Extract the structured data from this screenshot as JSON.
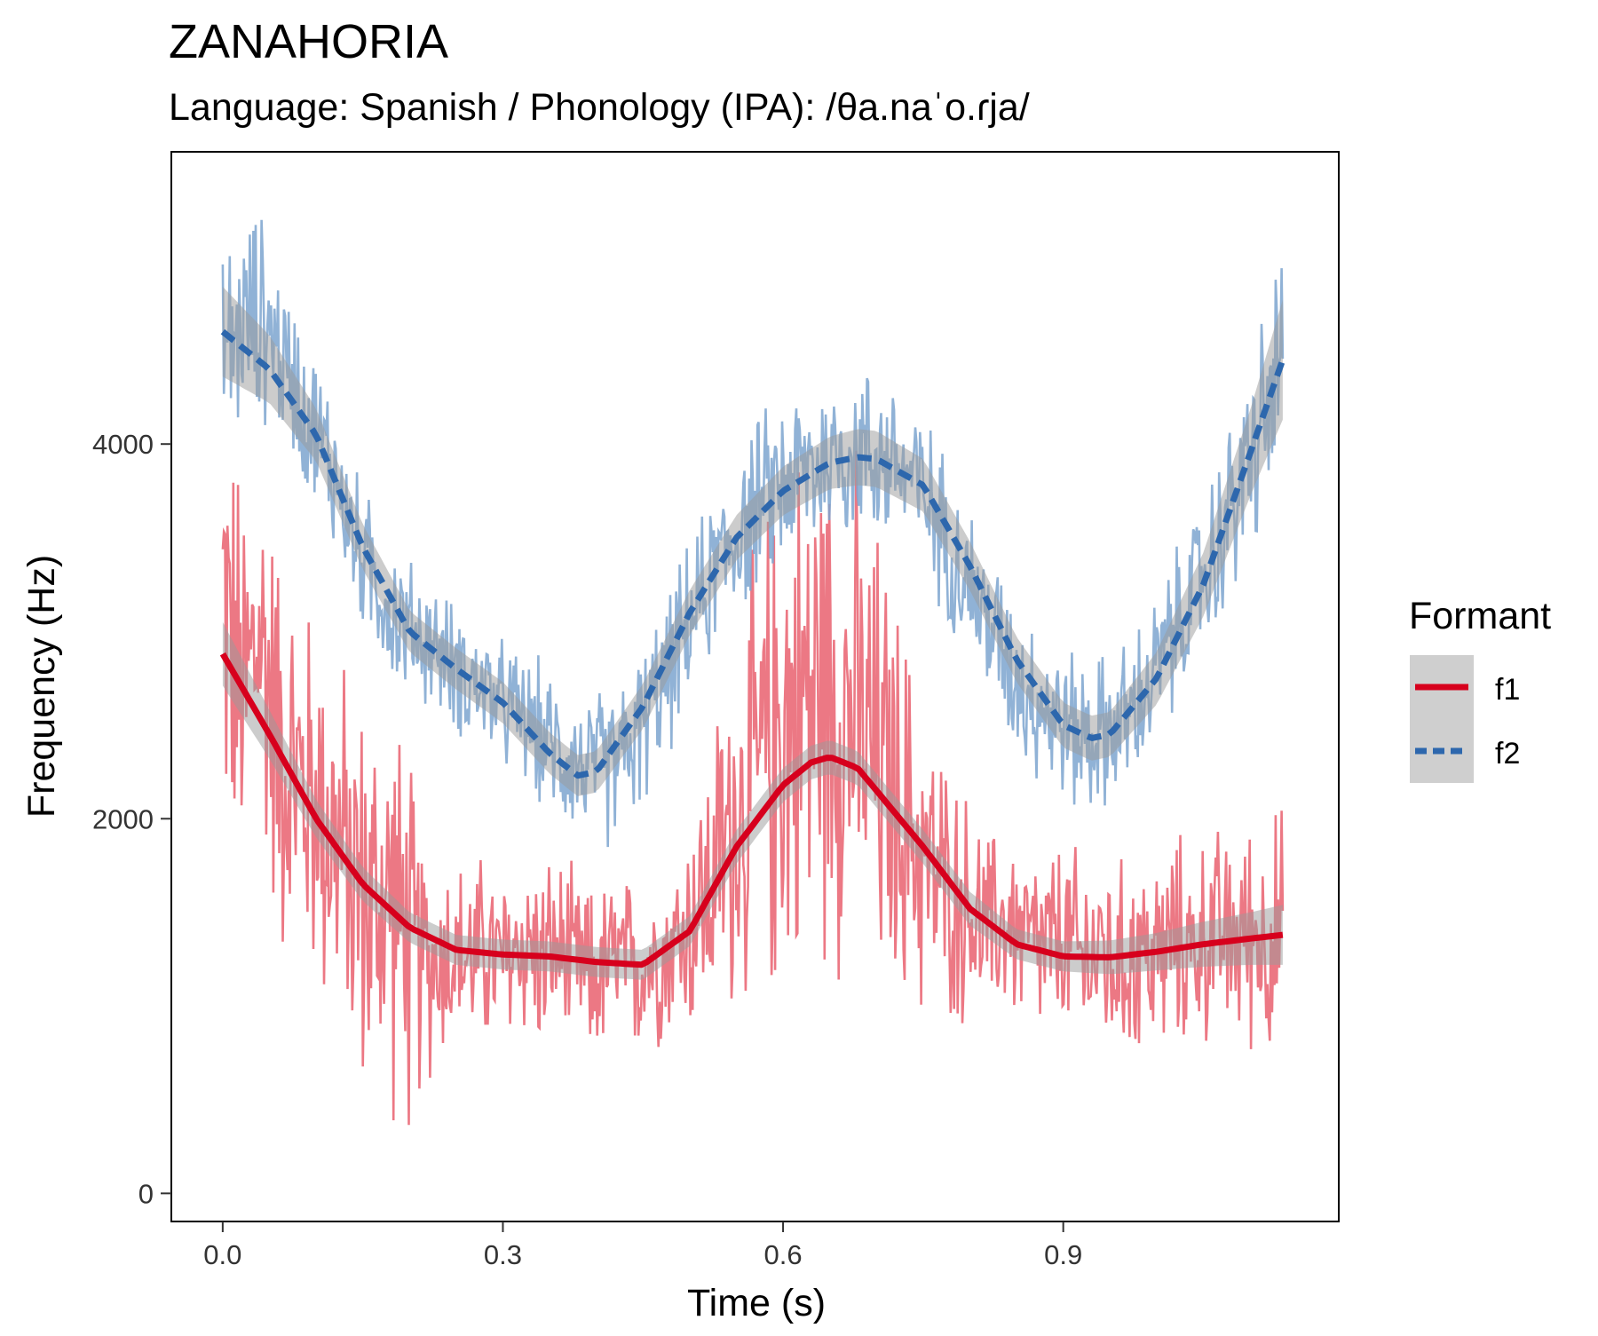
{
  "chart_data": {
    "type": "line",
    "title": "ZANAHORIA",
    "subtitle": "Language: Spanish / Phonology (IPA): /θa.naˈo.ɾja/",
    "xlabel": "Time (s)",
    "ylabel": "Frequency (Hz)",
    "xlim": [
      -0.055,
      1.195
    ],
    "ylim": [
      -150,
      5560
    ],
    "x_ticks": [
      0.0,
      0.3,
      0.6,
      0.9
    ],
    "x_tick_labels": [
      "0.0",
      "0.3",
      "0.6",
      "0.9"
    ],
    "y_ticks": [
      0,
      2000,
      4000
    ],
    "y_tick_labels": [
      "0",
      "2000",
      "4000"
    ],
    "grid": false,
    "legend": {
      "title": "Formant",
      "placement": "right",
      "entries": [
        "f1",
        "f2"
      ]
    },
    "colors": {
      "f1_smooth": "#d7001d",
      "f1_raw": "#e9606f",
      "f2_smooth": "#2d67ad",
      "f2_raw": "#7da4cf",
      "ribbon": "#999999"
    },
    "series": [
      {
        "name": "f1",
        "line_style": "solid",
        "smooth": {
          "x": [
            0.0,
            0.05,
            0.1,
            0.15,
            0.2,
            0.25,
            0.3,
            0.35,
            0.4,
            0.45,
            0.5,
            0.55,
            0.6,
            0.63,
            0.65,
            0.68,
            0.7,
            0.75,
            0.8,
            0.85,
            0.9,
            0.95,
            1.0,
            1.05,
            1.1,
            1.135
          ],
          "y": [
            2880,
            2450,
            2000,
            1650,
            1420,
            1300,
            1275,
            1265,
            1235,
            1220,
            1400,
            1850,
            2180,
            2300,
            2330,
            2270,
            2150,
            1850,
            1520,
            1330,
            1265,
            1260,
            1290,
            1330,
            1360,
            1380
          ],
          "band": [
            170,
            130,
            100,
            90,
            80,
            80,
            80,
            80,
            80,
            80,
            80,
            90,
            90,
            90,
            90,
            90,
            90,
            90,
            90,
            80,
            80,
            90,
            100,
            120,
            140,
            160
          ]
        },
        "raw": {
          "x": [
            0.0,
            0.02,
            0.04,
            0.06,
            0.08,
            0.1,
            0.12,
            0.14,
            0.16,
            0.18,
            0.2,
            0.22,
            0.24,
            0.26,
            0.28,
            0.3,
            0.32,
            0.34,
            0.36,
            0.38,
            0.4,
            0.42,
            0.44,
            0.46,
            0.48,
            0.5,
            0.52,
            0.54,
            0.56,
            0.58,
            0.6,
            0.62,
            0.64,
            0.66,
            0.68,
            0.7,
            0.72,
            0.74,
            0.76,
            0.78,
            0.8,
            0.82,
            0.84,
            0.86,
            0.88,
            0.9,
            0.92,
            0.94,
            0.96,
            0.98,
            1.0,
            1.02,
            1.04,
            1.06,
            1.08,
            1.1,
            1.12,
            1.135
          ],
          "y": [
            3200,
            2600,
            3000,
            2400,
            2200,
            2100,
            1900,
            1700,
            1500,
            1600,
            1300,
            1200,
            1300,
            1250,
            1300,
            1200,
            1350,
            1250,
            1300,
            1200,
            1150,
            1250,
            1200,
            1250,
            1300,
            1450,
            1600,
            1900,
            2100,
            2300,
            2500,
            2600,
            2700,
            2650,
            2500,
            2300,
            2100,
            1900,
            1700,
            1600,
            1500,
            1400,
            1450,
            1350,
            1300,
            1350,
            1250,
            1300,
            1200,
            1300,
            1250,
            1350,
            1300,
            1400,
            1350,
            1400,
            1350,
            1400
          ],
          "spread": [
            1400,
            1400,
            1300,
            1300,
            1200,
            1200,
            1200,
            1200,
            1300,
            1300,
            1200,
            700,
            650,
            600,
            600,
            600,
            600,
            600,
            600,
            550,
            550,
            550,
            550,
            550,
            550,
            700,
            900,
            1100,
            1300,
            1500,
            1700,
            1700,
            1700,
            1700,
            1600,
            1500,
            1300,
            1100,
            900,
            800,
            700,
            600,
            600,
            600,
            600,
            650,
            650,
            650,
            650,
            650,
            650,
            650,
            650,
            650,
            650,
            700,
            750,
            800
          ]
        }
      },
      {
        "name": "f2",
        "line_style": "dashed",
        "smooth": {
          "x": [
            0.0,
            0.05,
            0.1,
            0.15,
            0.2,
            0.25,
            0.3,
            0.35,
            0.38,
            0.4,
            0.45,
            0.5,
            0.55,
            0.6,
            0.65,
            0.68,
            0.7,
            0.75,
            0.8,
            0.85,
            0.9,
            0.93,
            0.95,
            1.0,
            1.05,
            1.1,
            1.135
          ],
          "y": [
            4600,
            4400,
            4050,
            3450,
            3000,
            2800,
            2620,
            2350,
            2230,
            2250,
            2600,
            3100,
            3500,
            3750,
            3900,
            3930,
            3920,
            3780,
            3350,
            2850,
            2500,
            2430,
            2450,
            2750,
            3250,
            3950,
            4450
          ],
          "band": [
            240,
            180,
            140,
            120,
            110,
            110,
            110,
            110,
            110,
            110,
            120,
            120,
            120,
            130,
            140,
            150,
            150,
            140,
            130,
            120,
            120,
            120,
            120,
            140,
            170,
            230,
            320
          ]
        },
        "raw": {
          "x": [
            0.0,
            0.02,
            0.04,
            0.06,
            0.08,
            0.1,
            0.12,
            0.14,
            0.16,
            0.18,
            0.2,
            0.22,
            0.24,
            0.26,
            0.28,
            0.3,
            0.32,
            0.34,
            0.36,
            0.38,
            0.4,
            0.42,
            0.44,
            0.46,
            0.48,
            0.5,
            0.52,
            0.54,
            0.56,
            0.58,
            0.6,
            0.62,
            0.64,
            0.66,
            0.68,
            0.7,
            0.72,
            0.74,
            0.76,
            0.78,
            0.8,
            0.82,
            0.84,
            0.86,
            0.88,
            0.9,
            0.92,
            0.94,
            0.96,
            0.98,
            1.0,
            1.02,
            1.04,
            1.06,
            1.08,
            1.1,
            1.12,
            1.135
          ],
          "y": [
            4500,
            4600,
            4700,
            4500,
            4300,
            4050,
            3850,
            3500,
            3300,
            3100,
            3000,
            2950,
            2850,
            2750,
            2700,
            2600,
            2550,
            2450,
            2350,
            2300,
            2250,
            2300,
            2400,
            2600,
            2800,
            3050,
            3250,
            3450,
            3600,
            3700,
            3800,
            3850,
            3900,
            3950,
            3950,
            3950,
            3900,
            3800,
            3650,
            3450,
            3250,
            3050,
            2850,
            2700,
            2600,
            2500,
            2450,
            2450,
            2500,
            2600,
            2800,
            3000,
            3200,
            3400,
            3650,
            3900,
            4200,
            4500
          ],
          "spread": [
            600,
            700,
            650,
            550,
            500,
            500,
            500,
            450,
            450,
            450,
            450,
            400,
            400,
            400,
            400,
            400,
            400,
            450,
            450,
            450,
            500,
            500,
            500,
            500,
            500,
            500,
            500,
            500,
            550,
            550,
            550,
            550,
            550,
            550,
            550,
            550,
            550,
            550,
            500,
            500,
            500,
            500,
            500,
            500,
            500,
            500,
            500,
            500,
            500,
            500,
            500,
            500,
            500,
            550,
            600,
            650,
            700,
            700
          ]
        }
      }
    ]
  }
}
